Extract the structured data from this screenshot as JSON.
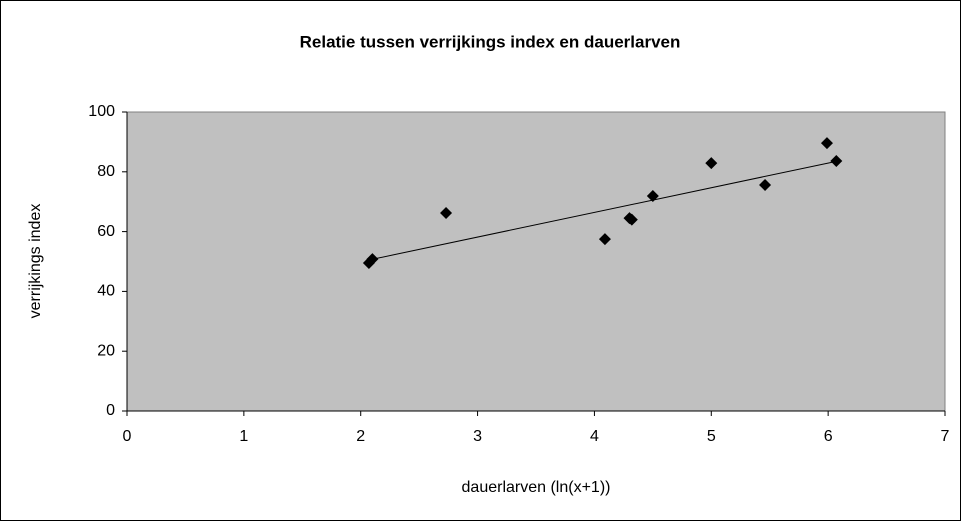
{
  "chart_data": {
    "type": "scatter",
    "title": "Relatie tussen verrijkings index en dauerlarven",
    "x_label": "dauerlarven (ln(x+1))",
    "y_label": "verrijkings index",
    "x": [
      2.07,
      2.1,
      2.73,
      4.09,
      4.3,
      4.32,
      4.5,
      5.0,
      5.46,
      5.99,
      6.07
    ],
    "values": [
      49.5,
      50.8,
      66.2,
      57.5,
      64.5,
      64,
      71.9,
      82.9,
      75.6,
      89.6,
      83.6
    ],
    "color": "#000000",
    "trendline": {
      "x": [
        2.07,
        6.07
      ],
      "values": [
        50.5,
        83.5
      ],
      "color": "#000000"
    },
    "xlim": [
      0,
      7
    ],
    "xticks": [
      0,
      1,
      2,
      3,
      4,
      5,
      6,
      7
    ],
    "ylim": [
      0,
      100
    ],
    "yticks": [
      0,
      20,
      40,
      60,
      80,
      100
    ],
    "grid": false,
    "plot_background": "#c0c0c0"
  }
}
